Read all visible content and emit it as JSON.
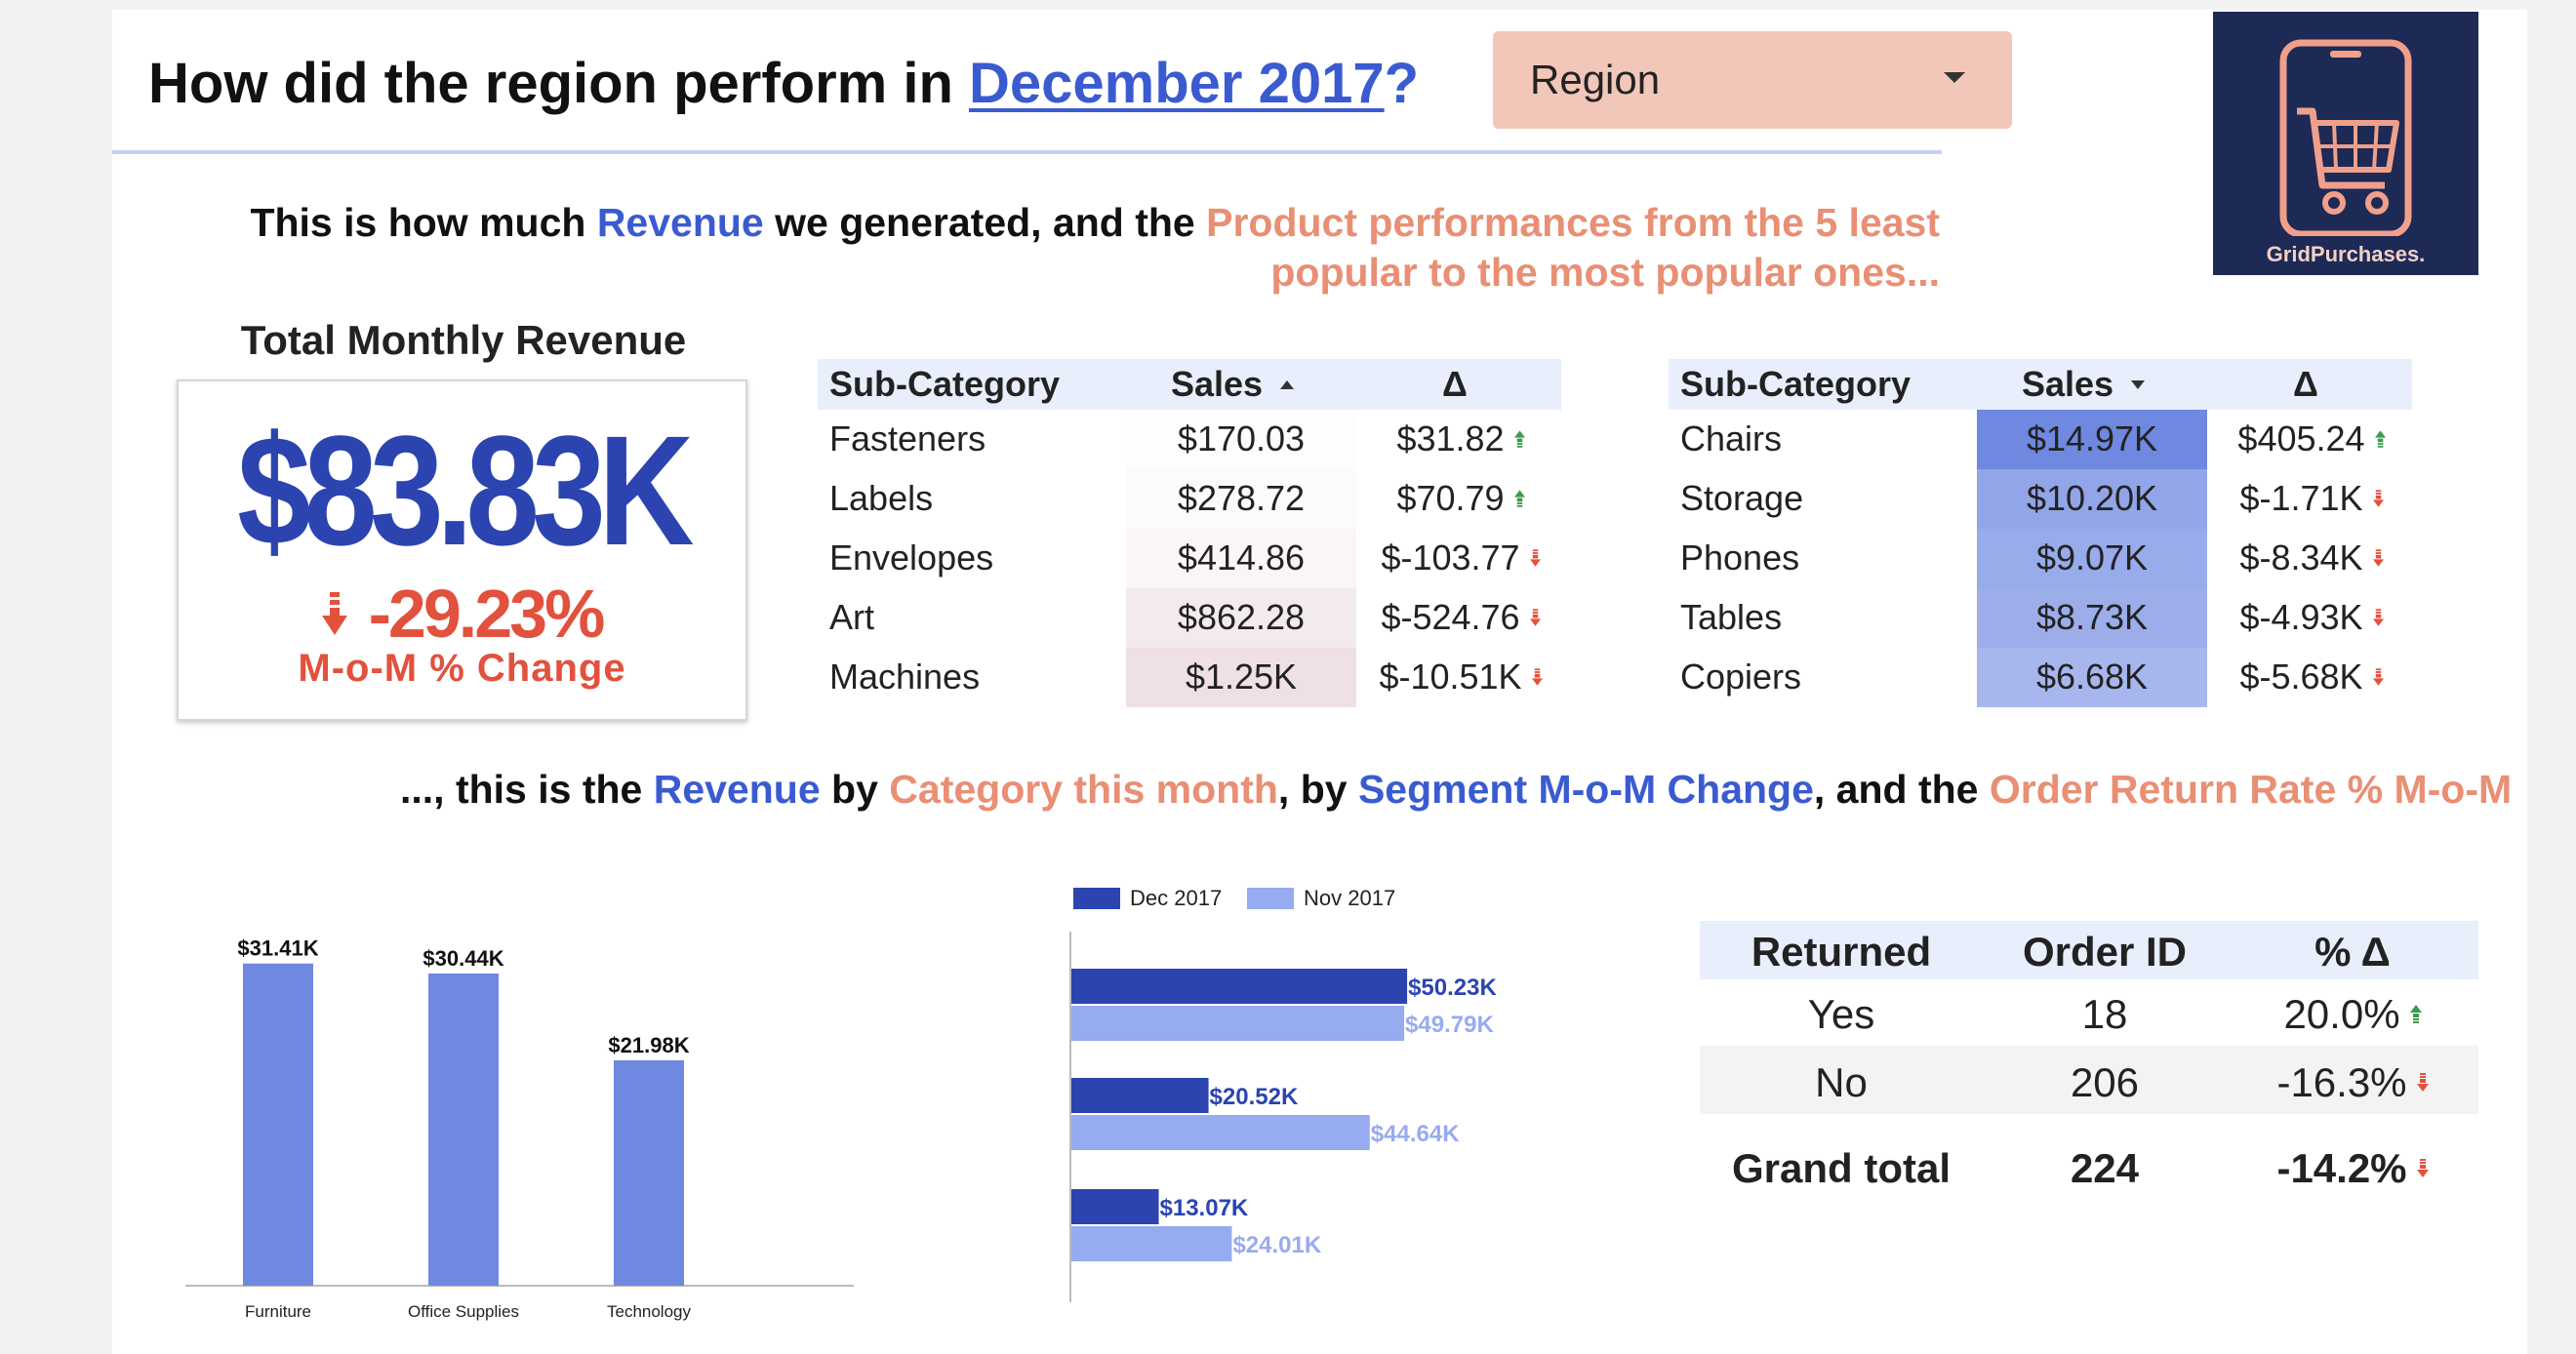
{
  "header": {
    "title_prefix": "How did the region perform in",
    "title_link": "December 2017",
    "title_suffix": "?",
    "region_label": "Region"
  },
  "logo": {
    "name": "GridPurchases."
  },
  "intro": {
    "p1": "This is how much ",
    "revenue": "Revenue",
    "p2": " we generated, and the ",
    "product": "Product performances from the 5 least popular to the most popular ones..."
  },
  "kpi": {
    "title": "Total Monthly Revenue",
    "value": "$83.83K",
    "change": "-29.23%",
    "change_label": "M-o-M % Change"
  },
  "least_table": {
    "headers": {
      "sub_category": "Sub-Category",
      "sales": "Sales",
      "delta": "Δ"
    },
    "sort": "ascending",
    "rows": [
      {
        "sub_category": "Fasteners",
        "sales": "$170.03",
        "delta": "$31.82",
        "trend": "up",
        "heat": 0.05
      },
      {
        "sub_category": "Labels",
        "sales": "$278.72",
        "delta": "$70.79",
        "trend": "up",
        "heat": 0.13
      },
      {
        "sub_category": "Envelopes",
        "sales": "$414.86",
        "delta": "$-103.77",
        "trend": "down",
        "heat": 0.26
      },
      {
        "sub_category": "Art",
        "sales": "$862.28",
        "delta": "$-524.76",
        "trend": "down",
        "heat": 0.58
      },
      {
        "sub_category": "Machines",
        "sales": "$1.25K",
        "delta": "$-10.51K",
        "trend": "down",
        "heat": 0.85
      }
    ],
    "heat_color": "#ebdbe2"
  },
  "most_table": {
    "headers": {
      "sub_category": "Sub-Category",
      "sales": "Sales",
      "delta": "Δ"
    },
    "sort": "descending",
    "rows": [
      {
        "sub_category": "Chairs",
        "sales": "$14.97K",
        "delta": "$405.24",
        "trend": "up",
        "heat": 1.0
      },
      {
        "sub_category": "Storage",
        "sales": "$10.20K",
        "delta": "$-1.71K",
        "trend": "down",
        "heat": 0.6
      },
      {
        "sub_category": "Phones",
        "sales": "$9.07K",
        "delta": "$-8.34K",
        "trend": "down",
        "heat": 0.52
      },
      {
        "sub_category": "Tables",
        "sales": "$8.73K",
        "delta": "$-4.93K",
        "trend": "down",
        "heat": 0.48
      },
      {
        "sub_category": "Copiers",
        "sales": "$6.68K",
        "delta": "$-5.68K",
        "trend": "down",
        "heat": 0.35
      }
    ],
    "heat_color_strong": "#6f88e0",
    "heat_color_light": "#c5d0f4"
  },
  "middle_text": {
    "p1": "..., this is the ",
    "revenue": "Revenue",
    "p2": " by ",
    "category": "Category this month",
    "p3": ", by ",
    "segment": "Segment M-o-M Change",
    "p4": ", and the ",
    "return_rate": "Order Return Rate % M-o-M"
  },
  "chart_data": [
    {
      "type": "bar",
      "categories": [
        "Furniture",
        "Office Supplies",
        "Technology"
      ],
      "values": [
        31.41,
        30.44,
        21.98
      ],
      "labels": [
        "$31.41K",
        "$30.44K",
        "$21.98K"
      ],
      "unit": "K USD",
      "title": "",
      "xlabel": "",
      "ylabel": "",
      "ylim": [
        0,
        35
      ],
      "color": "#6f88e0",
      "grid": false
    },
    {
      "type": "bar",
      "orientation": "horizontal",
      "categories": [
        "",
        "",
        ""
      ],
      "series": [
        {
          "name": "Dec 2017",
          "values": [
            50.23,
            20.52,
            13.07
          ],
          "labels": [
            "$50.23K",
            "$20.52K",
            "$13.07K"
          ],
          "color": "#2b44b0"
        },
        {
          "name": "Nov 2017",
          "values": [
            49.79,
            44.64,
            24.01
          ],
          "labels": [
            "$49.79K",
            "$44.64K",
            "$24.01K"
          ],
          "color": "#97abf0"
        }
      ],
      "unit": "K USD",
      "xlim": [
        0,
        60
      ],
      "legend": "top-left",
      "grid": false
    }
  ],
  "returns_table": {
    "headers": {
      "returned": "Returned",
      "order_id": "Order ID",
      "delta": "% Δ"
    },
    "rows": [
      {
        "returned": "Yes",
        "order_id": "18",
        "delta": "20.0%",
        "trend": "up"
      },
      {
        "returned": "No",
        "order_id": "206",
        "delta": "-16.3%",
        "trend": "down"
      }
    ],
    "total": {
      "returned": "Grand total",
      "order_id": "224",
      "delta": "-14.2%",
      "trend": "down"
    }
  },
  "colors": {
    "accent_blue": "#3a5bd0",
    "salmon": "#e88f74",
    "up": "#3d9a4a",
    "down": "#e2513d",
    "navy": "#2b44b0"
  }
}
